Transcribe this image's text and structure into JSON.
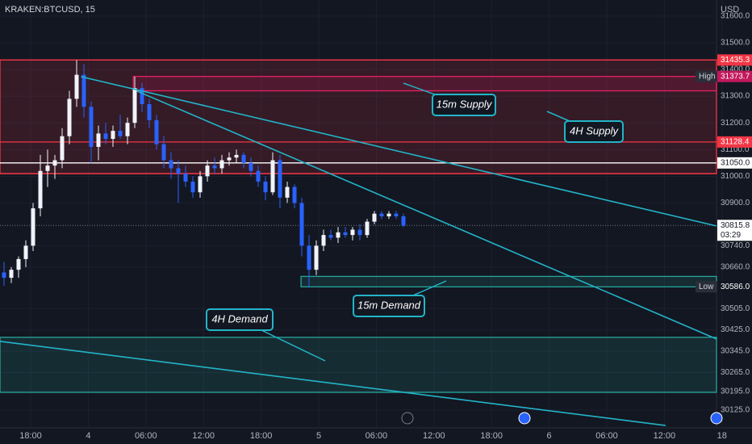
{
  "header": {
    "symbol": "KRAKEN:BTCUSD, 15",
    "currency": "USD"
  },
  "chart_data": {
    "type": "candlestick",
    "open": [
      30640,
      30620,
      30650,
      30690,
      30740,
      30880,
      31020,
      31040,
      31060,
      31150,
      31290,
      31380,
      31260,
      31110,
      31160,
      31140,
      31170,
      31150,
      31200,
      31330,
      31270,
      31210,
      31120,
      31060,
      31030,
      31010,
      30980,
      30940,
      31000,
      31040,
      31030,
      31060,
      31070,
      31080,
      31050,
      31020,
      30980,
      30940,
      31060,
      30920,
      30960,
      30900,
      30740,
      30650,
      30740,
      30780,
      30770,
      30790,
      30780,
      30800,
      30780,
      30830,
      30860,
      30850,
      30860,
      30850
    ],
    "high": [
      30680,
      30660,
      30700,
      30760,
      30900,
      31080,
      31100,
      31080,
      31180,
      31320,
      31435,
      31420,
      31280,
      31190,
      31200,
      31190,
      31230,
      31220,
      31373,
      31350,
      31290,
      31230,
      31150,
      31090,
      31060,
      31040,
      31000,
      31020,
      31060,
      31070,
      31080,
      31090,
      31100,
      31090,
      31070,
      31040,
      31000,
      31090,
      31080,
      30980,
      30970,
      30920,
      30780,
      30760,
      30800,
      30800,
      30810,
      30810,
      30810,
      30820,
      30840,
      30870,
      30870,
      30870,
      30870,
      30860
    ],
    "low": [
      30590,
      30600,
      30620,
      30660,
      30720,
      30850,
      30960,
      30990,
      31030,
      31120,
      31260,
      31220,
      31050,
      31060,
      31120,
      31110,
      31140,
      31120,
      31180,
      31240,
      31180,
      31100,
      31030,
      30990,
      30900,
      30960,
      30920,
      30920,
      30980,
      31010,
      31010,
      31040,
      31050,
      31030,
      31000,
      30960,
      30910,
      30930,
      30880,
      30900,
      30880,
      30700,
      30586,
      30630,
      30720,
      30760,
      30750,
      30770,
      30760,
      30760,
      30770,
      30820,
      30840,
      30840,
      30840,
      30810
    ],
    "close": [
      30620,
      30650,
      30690,
      30740,
      30880,
      31020,
      31040,
      31060,
      31150,
      31290,
      31380,
      31260,
      31110,
      31160,
      31140,
      31170,
      31150,
      31200,
      31330,
      31270,
      31210,
      31120,
      31060,
      31030,
      31010,
      30980,
      30940,
      31000,
      31040,
      31030,
      31060,
      31070,
      31080,
      31050,
      31020,
      30980,
      30940,
      31060,
      30920,
      30960,
      30900,
      30740,
      30650,
      30740,
      30780,
      30770,
      30790,
      30780,
      30800,
      30780,
      30830,
      30860,
      30850,
      30860,
      30850,
      30815.8
    ],
    "up_color": "#f0f3fa",
    "down_color": "#2962ff",
    "ylim": [
      30058,
      31660
    ],
    "yticks": [
      {
        "value": 31600,
        "label": "31600.0"
      },
      {
        "value": 31500,
        "label": "31500.0"
      },
      {
        "value": 31400,
        "label": "31400.0"
      },
      {
        "value": 31300,
        "label": "31300.0"
      },
      {
        "value": 31200,
        "label": "31200.0"
      },
      {
        "value": 31100,
        "label": "31100.0"
      },
      {
        "value": 31000,
        "label": "31000.0"
      },
      {
        "value": 30900,
        "label": "30900.0"
      },
      {
        "value": 30740,
        "label": "30740.0"
      },
      {
        "value": 30660,
        "label": "30660.0"
      },
      {
        "value": 30505,
        "label": "30505.0"
      },
      {
        "value": 30425,
        "label": "30425.0"
      },
      {
        "value": 30345,
        "label": "30345.0"
      },
      {
        "value": 30265,
        "label": "30265.0"
      },
      {
        "value": 30195,
        "label": "30195.0"
      },
      {
        "value": 30125,
        "label": "30125.0"
      }
    ],
    "xtick_labels": [
      "18:00",
      "4",
      "06:00",
      "12:00",
      "18:00",
      "5",
      "06:00",
      "12:00",
      "18:00",
      "6",
      "06:00",
      "12:00",
      "18"
    ],
    "levels": [
      {
        "value": 31435.3,
        "color": "#f23645",
        "tag": true
      },
      {
        "value": 31128.4,
        "color": "#f23645",
        "tag": true
      },
      {
        "value": 31050,
        "label": "31050.0",
        "color": "#ffffff",
        "tag": true
      },
      {
        "value": 31010,
        "color": "#f23645",
        "tag": false
      }
    ],
    "zones": [
      {
        "name": "4H Supply",
        "top": 31435.3,
        "bottom": 31010,
        "color": "#f23645"
      },
      {
        "name": "15m Supply",
        "top": 31373.7,
        "bottom": 31320,
        "start": 17.8,
        "color": "#e91e63"
      },
      {
        "name": "15m Demand",
        "top": 30625,
        "bottom": 30586,
        "start": 40.9,
        "color": "#26a69a"
      },
      {
        "name": "4H Demand",
        "top": 30397,
        "bottom": 30191,
        "color": "#26a69a"
      }
    ],
    "trendlines": [
      [
        [
          10.6,
          31373
        ],
        [
          98.1,
          30814
        ]
      ],
      [
        [
          18.3,
          31319
        ],
        [
          98.1,
          30391
        ]
      ],
      [
        [
          -0.56,
          30382
        ],
        [
          91.1,
          30067
        ]
      ]
    ],
    "trend_color": "#22b5c8",
    "high_tag": {
      "name": "High",
      "value": 31373.7
    },
    "low_tag": {
      "name": "Low",
      "value": 30586,
      "label": "30586.0"
    },
    "last": {
      "value": 30815.8,
      "countdown": "03:29"
    }
  }
}
